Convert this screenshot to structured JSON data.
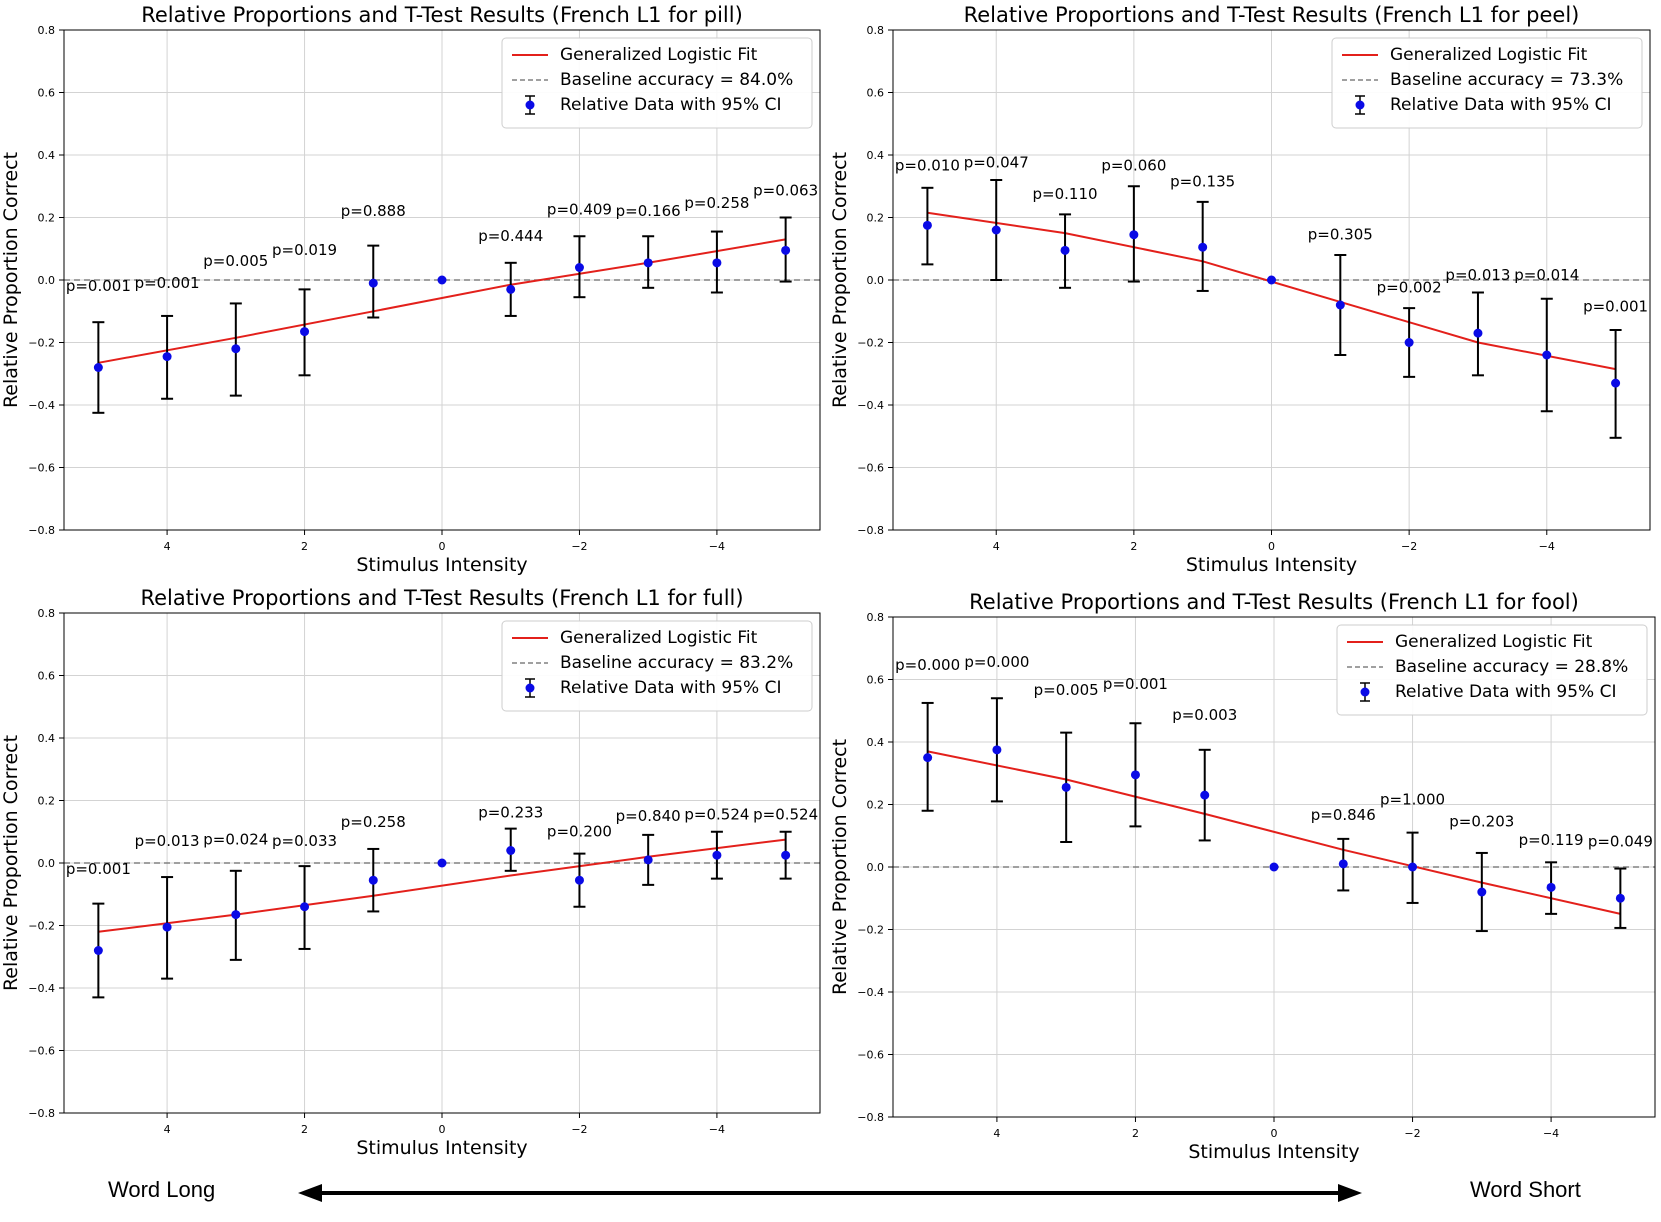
{
  "figure": {
    "bottom_left_label": "Word Long",
    "bottom_right_label": "Word Short",
    "colors": {
      "fit": "#e3201b",
      "baseline": "#808080",
      "points": "#0a0ae6",
      "errorbar": "#000000",
      "grid": "#d3d3d3"
    }
  },
  "chart_data": [
    {
      "type": "scatter",
      "title": "Relative Proportions and T-Test Results (French L1 for pill)",
      "xlabel": "Stimulus Intensity",
      "ylabel": "Relative Proportion Correct",
      "xlim": [
        5.5,
        -5.5
      ],
      "ylim": [
        -0.8,
        0.8
      ],
      "xticks": [
        4,
        2,
        0,
        -2,
        -4
      ],
      "xtick_labels": [
        "4",
        "2",
        "0",
        "−2",
        "−4"
      ],
      "yticks": [
        -0.8,
        -0.6,
        -0.4,
        -0.2,
        0.0,
        0.2,
        0.4,
        0.6,
        0.8
      ],
      "ytick_labels": [
        "−0.8",
        "−0.6",
        "−0.4",
        "−0.2",
        "0.0",
        "0.2",
        "0.4",
        "0.6",
        "0.8"
      ],
      "grid": true,
      "legend_position": "top-right",
      "legend": [
        "Generalized Logistic Fit",
        "Baseline accuracy = 84.0%",
        "Relative Data with 95% CI"
      ],
      "baseline": 0.0,
      "points": [
        {
          "x": 5,
          "y": -0.28,
          "lo": -0.425,
          "hi": -0.135,
          "p": "p=0.001"
        },
        {
          "x": 4,
          "y": -0.245,
          "lo": -0.38,
          "hi": -0.115,
          "p": "p=0.001"
        },
        {
          "x": 3,
          "y": -0.22,
          "lo": -0.37,
          "hi": -0.075,
          "p": "p=0.005"
        },
        {
          "x": 2,
          "y": -0.165,
          "lo": -0.305,
          "hi": -0.03,
          "p": "p=0.019"
        },
        {
          "x": 1,
          "y": -0.01,
          "lo": -0.12,
          "hi": 0.11,
          "p": "p=0.888"
        },
        {
          "x": 0,
          "y": 0.0
        },
        {
          "x": -1,
          "y": -0.03,
          "lo": -0.115,
          "hi": 0.055,
          "p": "p=0.444"
        },
        {
          "x": -2,
          "y": 0.04,
          "lo": -0.055,
          "hi": 0.14,
          "p": "p=0.409"
        },
        {
          "x": -3,
          "y": 0.055,
          "lo": -0.025,
          "hi": 0.14,
          "p": "p=0.166"
        },
        {
          "x": -4,
          "y": 0.055,
          "lo": -0.04,
          "hi": 0.155,
          "p": "p=0.258"
        },
        {
          "x": -5,
          "y": 0.095,
          "lo": -0.005,
          "hi": 0.2,
          "p": "p=0.063"
        }
      ],
      "p_label_y": [
        -0.035,
        -0.025,
        0.045,
        0.08,
        0.205,
        null,
        0.125,
        0.21,
        0.205,
        0.23,
        0.27
      ],
      "fit": {
        "x": [
          5,
          3,
          1,
          -1,
          -3,
          -5
        ],
        "y": [
          -0.265,
          -0.185,
          -0.1,
          -0.015,
          0.055,
          0.13
        ]
      }
    },
    {
      "type": "scatter",
      "title": "Relative Proportions and T-Test Results (French L1 for peel)",
      "xlabel": "Stimulus Intensity",
      "ylabel": "Relative Proportion Correct",
      "xlim": [
        5.5,
        -5.5
      ],
      "ylim": [
        -0.8,
        0.8
      ],
      "xticks": [
        4,
        2,
        0,
        -2,
        -4
      ],
      "xtick_labels": [
        "4",
        "2",
        "0",
        "−2",
        "−4"
      ],
      "yticks": [
        -0.8,
        -0.6,
        -0.4,
        -0.2,
        0.0,
        0.2,
        0.4,
        0.6,
        0.8
      ],
      "ytick_labels": [
        "−0.8",
        "−0.6",
        "−0.4",
        "−0.2",
        "0.0",
        "0.2",
        "0.4",
        "0.6",
        "0.8"
      ],
      "grid": true,
      "legend_position": "top-right",
      "legend": [
        "Generalized Logistic Fit",
        "Baseline accuracy = 73.3%",
        "Relative Data with 95% CI"
      ],
      "baseline": 0.0,
      "points": [
        {
          "x": 5,
          "y": 0.175,
          "lo": 0.05,
          "hi": 0.295,
          "p": "p=0.010"
        },
        {
          "x": 4,
          "y": 0.16,
          "lo": 0.0,
          "hi": 0.32,
          "p": "p=0.047"
        },
        {
          "x": 3,
          "y": 0.095,
          "lo": -0.025,
          "hi": 0.21,
          "p": "p=0.110"
        },
        {
          "x": 2,
          "y": 0.145,
          "lo": -0.005,
          "hi": 0.3,
          "p": "p=0.060"
        },
        {
          "x": 1,
          "y": 0.105,
          "lo": -0.035,
          "hi": 0.25,
          "p": "p=0.135"
        },
        {
          "x": 0,
          "y": 0.0
        },
        {
          "x": -1,
          "y": -0.08,
          "lo": -0.24,
          "hi": 0.08,
          "p": "p=0.305"
        },
        {
          "x": -2,
          "y": -0.2,
          "lo": -0.31,
          "hi": -0.09,
          "p": "p=0.002"
        },
        {
          "x": -3,
          "y": -0.17,
          "lo": -0.305,
          "hi": -0.04,
          "p": "p=0.013"
        },
        {
          "x": -4,
          "y": -0.24,
          "lo": -0.42,
          "hi": -0.06,
          "p": "p=0.014"
        },
        {
          "x": -5,
          "y": -0.33,
          "lo": -0.505,
          "hi": -0.16,
          "p": "p=0.001"
        }
      ],
      "p_label_y": [
        0.35,
        0.36,
        0.26,
        0.35,
        0.3,
        null,
        0.13,
        -0.04,
        0.0,
        0.0,
        -0.1
      ],
      "fit": {
        "x": [
          5,
          3,
          1,
          -1,
          -3,
          -5
        ],
        "y": [
          0.215,
          0.15,
          0.06,
          -0.07,
          -0.2,
          -0.285
        ]
      }
    },
    {
      "type": "scatter",
      "title": "Relative Proportions and T-Test Results (French L1 for full)",
      "xlabel": "Stimulus Intensity",
      "ylabel": "Relative Proportion Correct",
      "xlim": [
        5.5,
        -5.5
      ],
      "ylim": [
        -0.8,
        0.8
      ],
      "xticks": [
        4,
        2,
        0,
        -2,
        -4
      ],
      "xtick_labels": [
        "4",
        "2",
        "0",
        "−2",
        "−4"
      ],
      "yticks": [
        -0.8,
        -0.6,
        -0.4,
        -0.2,
        0.0,
        0.2,
        0.4,
        0.6,
        0.8
      ],
      "ytick_labels": [
        "−0.8",
        "−0.6",
        "−0.4",
        "−0.2",
        "0.0",
        "0.2",
        "0.4",
        "0.6",
        "0.8"
      ],
      "grid": true,
      "legend_position": "top-right",
      "legend": [
        "Generalized Logistic Fit",
        "Baseline accuracy = 83.2%",
        "Relative Data with 95% CI"
      ],
      "baseline": 0.0,
      "points": [
        {
          "x": 5,
          "y": -0.28,
          "lo": -0.43,
          "hi": -0.13,
          "p": "p=0.001"
        },
        {
          "x": 4,
          "y": -0.205,
          "lo": -0.37,
          "hi": -0.045,
          "p": "p=0.013"
        },
        {
          "x": 3,
          "y": -0.165,
          "lo": -0.31,
          "hi": -0.025,
          "p": "p=0.024"
        },
        {
          "x": 2,
          "y": -0.14,
          "lo": -0.275,
          "hi": -0.01,
          "p": "p=0.033"
        },
        {
          "x": 1,
          "y": -0.055,
          "lo": -0.155,
          "hi": 0.045,
          "p": "p=0.258"
        },
        {
          "x": 0,
          "y": 0.0
        },
        {
          "x": -1,
          "y": 0.04,
          "lo": -0.025,
          "hi": 0.11,
          "p": "p=0.233"
        },
        {
          "x": -2,
          "y": -0.055,
          "lo": -0.14,
          "hi": 0.03,
          "p": "p=0.200"
        },
        {
          "x": -3,
          "y": 0.01,
          "lo": -0.07,
          "hi": 0.09,
          "p": "p=0.840"
        },
        {
          "x": -4,
          "y": 0.025,
          "lo": -0.05,
          "hi": 0.1,
          "p": "p=0.524"
        },
        {
          "x": -5,
          "y": 0.025,
          "lo": -0.05,
          "hi": 0.1,
          "p": "p=0.524"
        }
      ],
      "p_label_y": [
        -0.035,
        0.055,
        0.06,
        0.055,
        0.115,
        null,
        0.145,
        0.085,
        0.135,
        0.14,
        0.14
      ],
      "fit": {
        "x": [
          5,
          3,
          1,
          -1,
          -3,
          -5
        ],
        "y": [
          -0.22,
          -0.165,
          -0.105,
          -0.04,
          0.02,
          0.075
        ]
      }
    },
    {
      "type": "scatter",
      "title": "Relative Proportions and T-Test Results (French L1 for fool)",
      "xlabel": "Stimulus Intensity",
      "ylabel": "Relative Proportion Correct",
      "xlim": [
        5.5,
        -5.5
      ],
      "ylim": [
        -0.8,
        0.8
      ],
      "xticks": [
        4,
        2,
        0,
        -2,
        -4
      ],
      "xtick_labels": [
        "4",
        "2",
        "0",
        "−2",
        "−4"
      ],
      "yticks": [
        -0.8,
        -0.6,
        -0.4,
        -0.2,
        0.0,
        0.2,
        0.4,
        0.6,
        0.8
      ],
      "ytick_labels": [
        "−0.8",
        "−0.6",
        "−0.4",
        "−0.2",
        "0.0",
        "0.2",
        "0.4",
        "0.6",
        "0.8"
      ],
      "grid": true,
      "legend_position": "top-right",
      "legend": [
        "Generalized Logistic Fit",
        "Baseline accuracy = 28.8%",
        "Relative Data with 95% CI"
      ],
      "baseline": 0.0,
      "points": [
        {
          "x": 5,
          "y": 0.35,
          "lo": 0.18,
          "hi": 0.525,
          "p": "p=0.000"
        },
        {
          "x": 4,
          "y": 0.375,
          "lo": 0.21,
          "hi": 0.54,
          "p": "p=0.000"
        },
        {
          "x": 3,
          "y": 0.255,
          "lo": 0.08,
          "hi": 0.43,
          "p": "p=0.005"
        },
        {
          "x": 2,
          "y": 0.295,
          "lo": 0.13,
          "hi": 0.46,
          "p": "p=0.001"
        },
        {
          "x": 1,
          "y": 0.23,
          "lo": 0.085,
          "hi": 0.375,
          "p": "p=0.003"
        },
        {
          "x": 0,
          "y": 0.0
        },
        {
          "x": -1,
          "y": 0.01,
          "lo": -0.075,
          "hi": 0.09,
          "p": "p=0.846"
        },
        {
          "x": -2,
          "y": 0.0,
          "lo": -0.115,
          "hi": 0.11,
          "p": "p=1.000"
        },
        {
          "x": -3,
          "y": -0.08,
          "lo": -0.205,
          "hi": 0.045,
          "p": "p=0.203"
        },
        {
          "x": -4,
          "y": -0.065,
          "lo": -0.15,
          "hi": 0.015,
          "p": "p=0.119"
        },
        {
          "x": -5,
          "y": -0.1,
          "lo": -0.195,
          "hi": -0.005,
          "p": "p=0.049"
        }
      ],
      "p_label_y": [
        0.63,
        0.64,
        0.55,
        0.57,
        0.47,
        null,
        0.15,
        0.2,
        0.13,
        0.07,
        0.065
      ],
      "fit": {
        "x": [
          5,
          3,
          1,
          -1,
          -3,
          -5
        ],
        "y": [
          0.37,
          0.28,
          0.17,
          0.055,
          -0.05,
          -0.15
        ]
      }
    }
  ]
}
